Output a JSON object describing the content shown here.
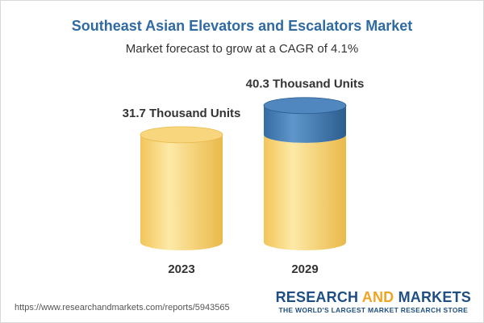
{
  "header": {
    "title": "Southeast Asian Elevators and Escalators Market",
    "subtitle": "Market forecast to grow at a CAGR of 4.1%"
  },
  "chart_data": {
    "type": "bar",
    "title": "Southeast Asian Elevators and Escalators Market",
    "subtitle": "Market forecast to grow at a CAGR of 4.1%",
    "categories": [
      "2023",
      "2029"
    ],
    "values": [
      31.7,
      40.3
    ],
    "unit": "Thousand Units",
    "data_labels": [
      "31.7 Thousand Units",
      "40.3 Thousand Units"
    ],
    "style": "3d-cylinder",
    "colors": {
      "base": "#f5cd68",
      "base_light": "#fde9a6",
      "base_dark": "#e6b445",
      "growth": "#3f7cb4",
      "growth_light": "#6fa3d4",
      "growth_dark": "#2c5d8f"
    },
    "legend": "none",
    "grid": false
  },
  "footer": {
    "url": "https://www.researchandmarkets.com/reports/5943565",
    "logo_word1": "RESEARCH",
    "logo_word2": "AND",
    "logo_word3": "MARKETS",
    "tagline": "THE WORLD'S LARGEST MARKET RESEARCH STORE"
  }
}
